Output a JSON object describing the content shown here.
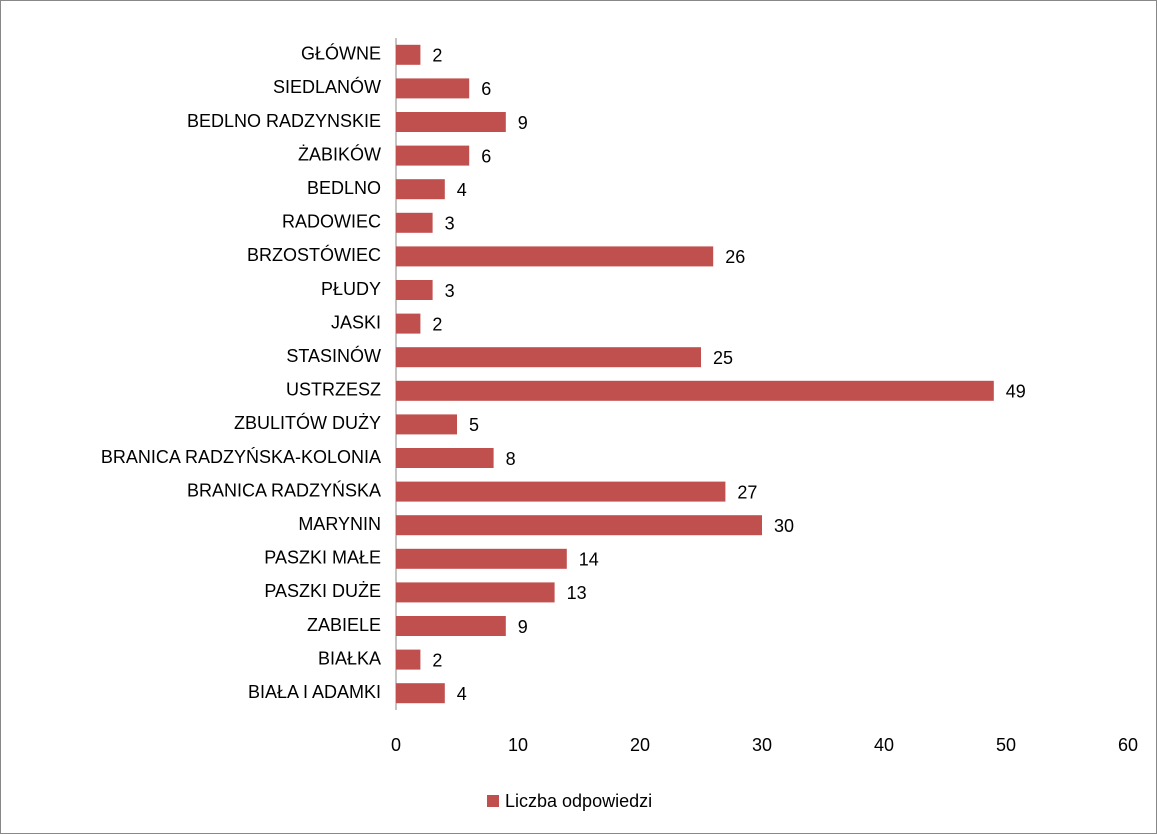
{
  "chart_data": {
    "type": "bar",
    "orientation": "horizontal",
    "categories": [
      "GŁÓWNE",
      "SIEDLANÓW",
      "BEDLNO RADZYNSKIE",
      "ŻABIKÓW",
      "BEDLNO",
      "RADOWIEC",
      "BRZOSTÓWIEC",
      "PŁUDY",
      "JASKI",
      "STASINÓW",
      "USTRZESZ",
      "ZBULITÓW DUŻY",
      "BRANICA RADZYŃSKA-KOLONIA",
      "BRANICA RADZYŃSKA",
      "MARYNIN",
      "PASZKI MAŁE",
      "PASZKI DUŻE",
      "ZABIELE",
      "BIAŁKA",
      "BIAŁA I ADAMKI"
    ],
    "series": [
      {
        "name": "Liczba odpowiedzi",
        "color": "#c0504d",
        "values": [
          2,
          6,
          9,
          6,
          4,
          3,
          26,
          3,
          2,
          25,
          49,
          5,
          8,
          27,
          30,
          14,
          13,
          9,
          2,
          4
        ]
      }
    ],
    "xlim": [
      0,
      60
    ],
    "xticks": [
      0,
      10,
      20,
      30,
      40,
      50,
      60
    ],
    "grid": false,
    "legend": "bottom"
  }
}
